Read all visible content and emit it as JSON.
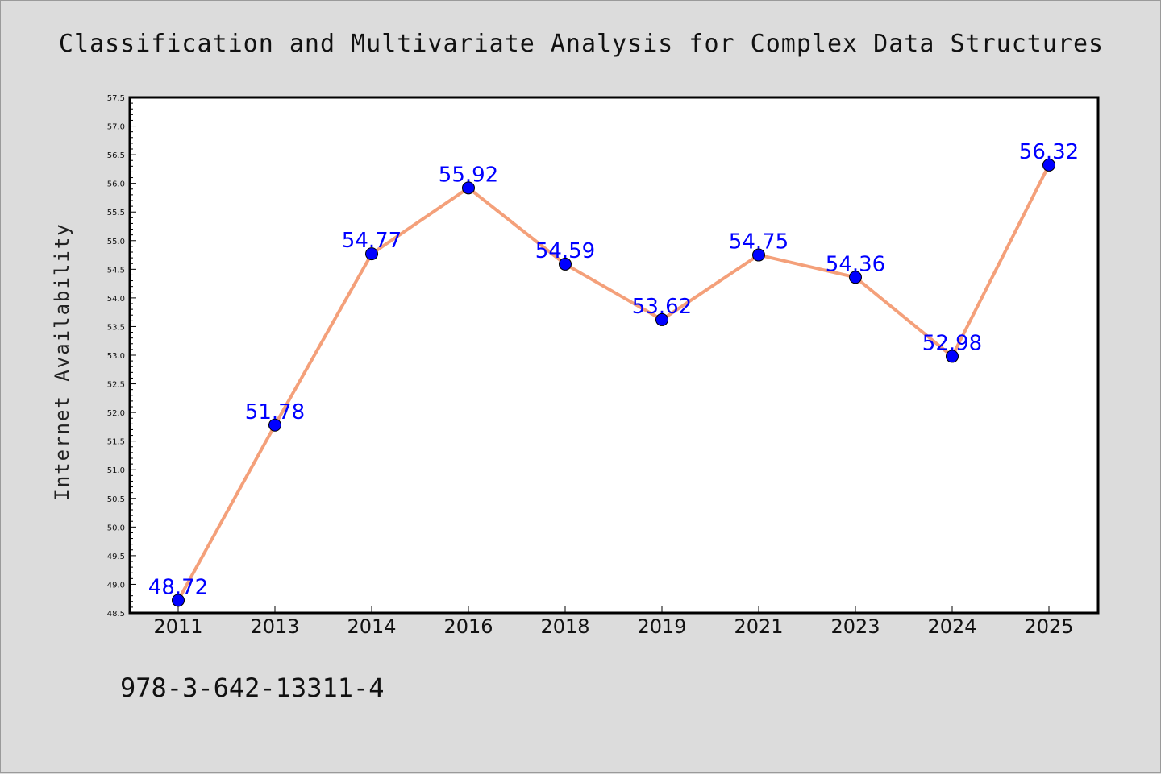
{
  "chart_data": {
    "type": "line",
    "title": "Classification and Multivariate Analysis for Complex Data Structures",
    "xlabel": "",
    "ylabel": "Internet Availability",
    "categories": [
      "2011",
      "2013",
      "2014",
      "2016",
      "2018",
      "2019",
      "2021",
      "2023",
      "2024",
      "2025"
    ],
    "values": [
      48.72,
      51.78,
      54.77,
      55.92,
      54.59,
      53.62,
      54.75,
      54.36,
      52.98,
      56.32
    ],
    "data_labels": [
      "48.72",
      "51.78",
      "54.77",
      "55.92",
      "54.59",
      "53.62",
      "54.75",
      "54.36",
      "52.98",
      "56.32"
    ],
    "ylim": [
      48.5,
      57.5
    ],
    "yticks": [
      "48.5",
      "49.0",
      "49.5",
      "50.0",
      "50.5",
      "51.0",
      "51.5",
      "52.0",
      "52.5",
      "53.0",
      "53.5",
      "54.0",
      "54.5",
      "55.0",
      "55.5",
      "56.0",
      "56.5",
      "57.0",
      "57.5"
    ],
    "grid": false,
    "legend": "none",
    "line_color": "#f4a07a",
    "marker_color": "#0000ff",
    "label_color": "#0000ff",
    "background_color": "#dcdcdc",
    "plot_background": "#ffffff"
  },
  "footer": {
    "isbn": "978-3-642-13311-4"
  }
}
